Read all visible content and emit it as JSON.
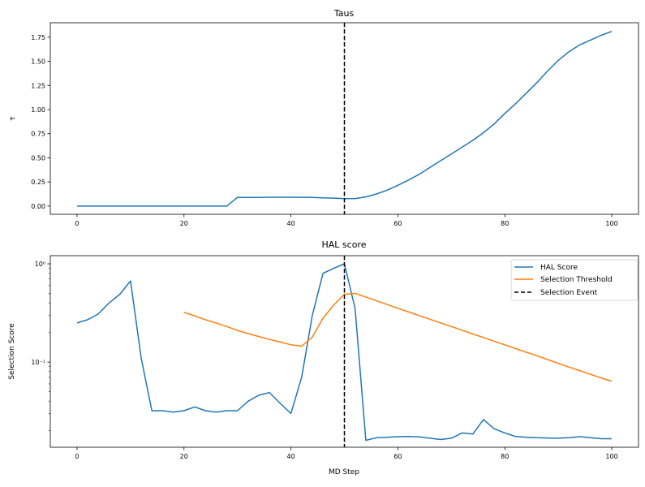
{
  "chart_data": [
    {
      "type": "line",
      "title": "Taus",
      "xlabel": "",
      "ylabel": "τ",
      "xlim": [
        -5,
        105
      ],
      "ylim": [
        -0.085,
        1.9
      ],
      "xticks": [
        0,
        20,
        40,
        60,
        80,
        100
      ],
      "yticks": [
        "0.00",
        "0.25",
        "0.50",
        "0.75",
        "1.00",
        "1.25",
        "1.50",
        "1.75"
      ],
      "grid": false,
      "series": [
        {
          "color": "#1f77b4",
          "x": [
            0,
            2,
            4,
            6,
            8,
            10,
            12,
            14,
            16,
            18,
            20,
            22,
            24,
            26,
            28,
            30,
            32,
            34,
            36,
            38,
            40,
            42,
            44,
            46,
            48,
            50,
            52,
            54,
            56,
            58,
            60,
            62,
            64,
            66,
            68,
            70,
            72,
            74,
            76,
            78,
            80,
            82,
            84,
            86,
            88,
            90,
            92,
            94,
            96,
            98,
            100
          ],
          "y": [
            0,
            0,
            0,
            0,
            0,
            0,
            0,
            0,
            0,
            0,
            0,
            0,
            0,
            0,
            0,
            0.09,
            0.09,
            0.09,
            0.092,
            0.092,
            0.092,
            0.091,
            0.09,
            0.086,
            0.082,
            0.077,
            0.078,
            0.095,
            0.125,
            0.165,
            0.215,
            0.27,
            0.33,
            0.4,
            0.47,
            0.54,
            0.61,
            0.68,
            0.76,
            0.85,
            0.96,
            1.06,
            1.17,
            1.28,
            1.4,
            1.51,
            1.6,
            1.67,
            1.72,
            1.77,
            1.81
          ]
        }
      ],
      "vline": {
        "x": 50,
        "color": "#000000",
        "style": "dashed"
      }
    },
    {
      "type": "line",
      "title": "HAL score",
      "xlabel": "MD Step",
      "ylabel": "Selection Score",
      "yscale": "log",
      "xlim": [
        -5,
        105
      ],
      "ylim": [
        0.0136,
        1.21
      ],
      "xticks": [
        0,
        20,
        40,
        60,
        80,
        100
      ],
      "yticks": [
        {
          "value": 0.1,
          "label": "10⁻¹"
        },
        {
          "value": 1,
          "label": "10⁰"
        }
      ],
      "grid": false,
      "legend": "top-right",
      "series": [
        {
          "name": "HAL Score",
          "color": "#1f77b4",
          "x": [
            0,
            2,
            4,
            6,
            8,
            10,
            12,
            14,
            16,
            18,
            20,
            22,
            24,
            26,
            28,
            30,
            32,
            34,
            36,
            38,
            40,
            42,
            44,
            46,
            48,
            50,
            52,
            54,
            56,
            58,
            60,
            62,
            64,
            66,
            68,
            70,
            72,
            74,
            76,
            78,
            80,
            82,
            84,
            86,
            88,
            90,
            92,
            94,
            96,
            98,
            100
          ],
          "y": [
            0.25,
            0.27,
            0.31,
            0.4,
            0.49,
            0.67,
            0.11,
            0.032,
            0.032,
            0.031,
            0.032,
            0.035,
            0.032,
            0.031,
            0.032,
            0.032,
            0.04,
            0.046,
            0.049,
            0.038,
            0.03,
            0.07,
            0.3,
            0.8,
            0.9,
            1.0,
            0.35,
            0.016,
            0.017,
            0.0172,
            0.0174,
            0.0175,
            0.0173,
            0.0168,
            0.0163,
            0.0168,
            0.019,
            0.0185,
            0.026,
            0.021,
            0.019,
            0.0175,
            0.0172,
            0.017,
            0.0169,
            0.0168,
            0.017,
            0.0174,
            0.017,
            0.0166,
            0.0166
          ]
        },
        {
          "name": "Selection Threshold",
          "color": "#ff7f0e",
          "x": [
            20,
            22,
            24,
            26,
            28,
            30,
            32,
            34,
            36,
            38,
            40,
            42,
            44,
            46,
            48,
            50,
            52,
            54,
            56,
            58,
            60,
            62,
            64,
            66,
            68,
            70,
            72,
            74,
            76,
            78,
            80,
            82,
            84,
            86,
            88,
            90,
            92,
            94,
            96,
            98,
            100
          ],
          "y": [
            0.32,
            0.295,
            0.27,
            0.25,
            0.23,
            0.21,
            0.195,
            0.182,
            0.17,
            0.16,
            0.15,
            0.145,
            0.18,
            0.28,
            0.38,
            0.49,
            0.5,
            0.46,
            0.42,
            0.385,
            0.353,
            0.324,
            0.297,
            0.273,
            0.25,
            0.23,
            0.211,
            0.193,
            0.178,
            0.163,
            0.15,
            0.137,
            0.126,
            0.116,
            0.106,
            0.097,
            0.089,
            0.082,
            0.075,
            0.069,
            0.064
          ]
        }
      ],
      "vline": {
        "x": 50,
        "color": "#000000",
        "style": "dashed",
        "name": "Selection Event"
      }
    }
  ]
}
